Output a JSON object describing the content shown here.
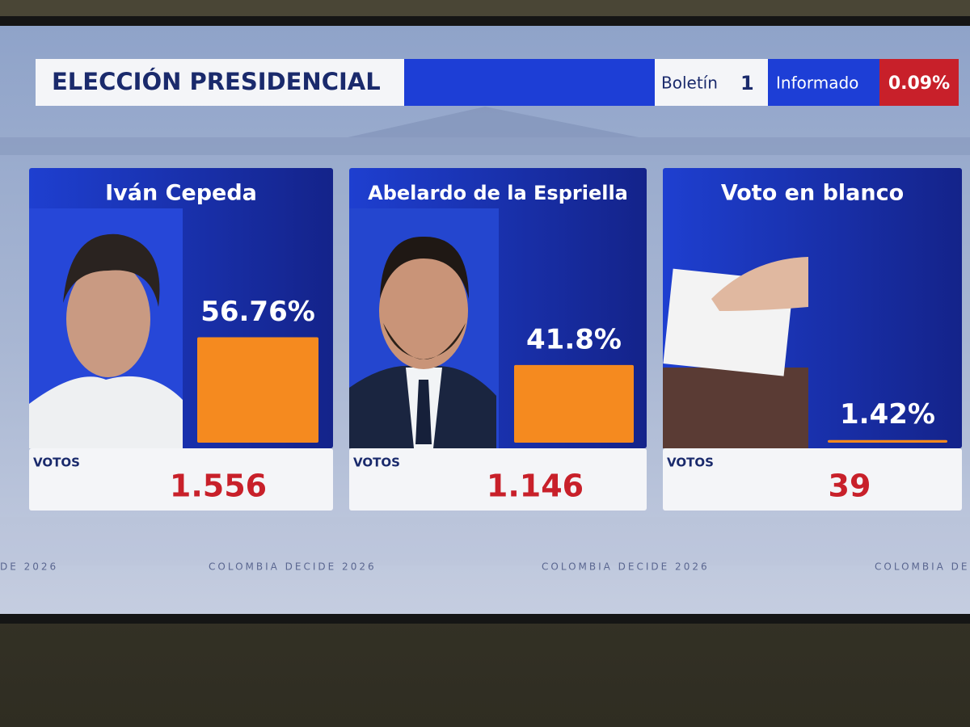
{
  "header": {
    "title": "ELECCIÓN PRESIDENCIAL",
    "bulletin_label": "Boletín",
    "bulletin_number": "1",
    "informed_label": "Informado",
    "informed_percent": "0.09%"
  },
  "candidates": [
    {
      "name": "Iván Cepeda",
      "percent": 56.76,
      "percent_label": "56.76%",
      "votes_label": "VOTOS",
      "votes": "1.556"
    },
    {
      "name": "Abelardo de la Espriella",
      "percent": 41.8,
      "percent_label": "41.8%",
      "votes_label": "VOTOS",
      "votes": "1.146"
    },
    {
      "name": "Voto en blanco",
      "percent": 1.42,
      "percent_label": "1.42%",
      "votes_label": "VOTOS",
      "votes": "39"
    }
  ],
  "footer": {
    "text": "COLOMBIA DECIDE 2026",
    "partial": "DE 2026"
  }
}
